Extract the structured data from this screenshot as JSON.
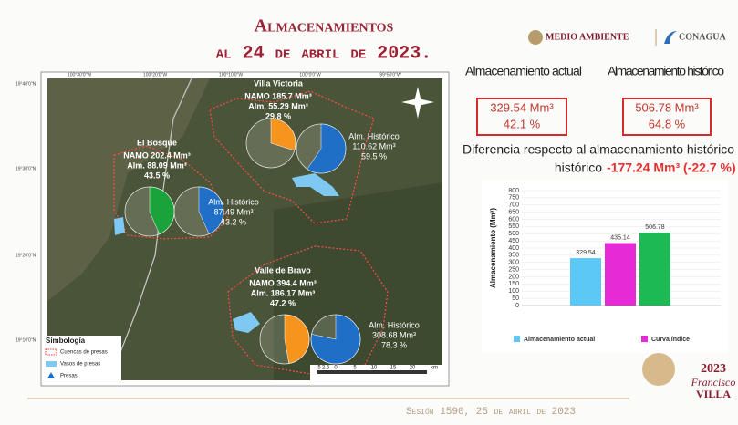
{
  "header": {
    "title": "Almacenamientos",
    "subtitle": "al 24 de abril de 2023.",
    "logo_left": "MEDIO AMBIENTE",
    "logo_right": "CONAGUA"
  },
  "map": {
    "lon_labels": [
      "100°30'0\"W",
      "100°20'0\"W",
      "100°10'0\"W",
      "100°0'0\"W",
      "99°50'0\"W"
    ],
    "lat_labels": [
      "19°40'0\"N",
      "19°30'0\"N",
      "19°20'0\"N",
      "19°10'0\"N"
    ],
    "reservoirs": [
      {
        "name": "Villa Victoria",
        "namo": "NAMO 185.7 Mm³",
        "alm": "Alm. 55.29 Mm³",
        "pct": 29.8,
        "pct_label": "29.8 %",
        "color": "#f7941d",
        "hist_title": "Alm. Histórico",
        "hist": "110.62 Mm³",
        "hist_pct": 59.5,
        "hist_pct_label": "59.5 %",
        "hist_color": "#1f6fc6"
      },
      {
        "name": "El Bosque",
        "namo": "NAMO 202.4 Mm³",
        "alm": "Alm. 88.09 Mm³",
        "pct": 43.5,
        "pct_label": "43.5 %",
        "color": "#1aa33a",
        "hist_title": "Alm. Histórico",
        "hist": "87.49 Mm³",
        "hist_pct": 43.2,
        "hist_pct_label": "43.2 %",
        "hist_color": "#1f6fc6"
      },
      {
        "name": "Valle de Bravo",
        "namo": "NAMO 394.4 Mm³",
        "alm": "Alm. 186.17 Mm³",
        "pct": 47.2,
        "pct_label": "47.2 %",
        "color": "#f7941d",
        "hist_title": "Alm. Histórico",
        "hist": "308.68 Mm³",
        "hist_pct": 78.3,
        "hist_pct_label": "78.3 %",
        "hist_color": "#1f6fc6"
      }
    ],
    "legend": {
      "title": "Simbología",
      "items": [
        "Cuencas de presas",
        "Vasos de presas",
        "Presas"
      ]
    },
    "scale_labels": [
      "5",
      "2.5",
      "0",
      "5",
      "10",
      "15",
      "20",
      "km"
    ]
  },
  "summary": {
    "current_title": "Almacenamiento actual",
    "current_value": "329.54 Mm³",
    "current_pct": "42.1 %",
    "hist_title": "Almacenamiento histórico",
    "hist_value": "506.78 Mm³",
    "hist_pct": "64.8 %",
    "diff_text": "Diferencia respecto al almacenamiento histórico",
    "diff_value": "-177.24 Mm³ (-22.7 %)"
  },
  "chart_data": {
    "type": "bar",
    "y_label": "Almacenamiento (Mm³)",
    "values": [
      329.54,
      435.14,
      506.78
    ],
    "colors": [
      "#5bc8f5",
      "#e62ad6",
      "#1db954"
    ],
    "legend": [
      {
        "name": "Almacenamiento actual",
        "color": "#5bc8f5"
      },
      {
        "name": "Curva índice",
        "color": "#e62ad6"
      }
    ],
    "ylim": [
      0,
      800
    ],
    "yticks": [
      0,
      50,
      100,
      150,
      200,
      250,
      300,
      350,
      400,
      450,
      500,
      550,
      600,
      650,
      700,
      750,
      800
    ],
    "grid": true
  },
  "footer": {
    "session": "Sesión 1590, 25 de abril de 2023",
    "badge_year": "2023",
    "badge_name": "Francisco",
    "badge_surname": "VILLA"
  }
}
